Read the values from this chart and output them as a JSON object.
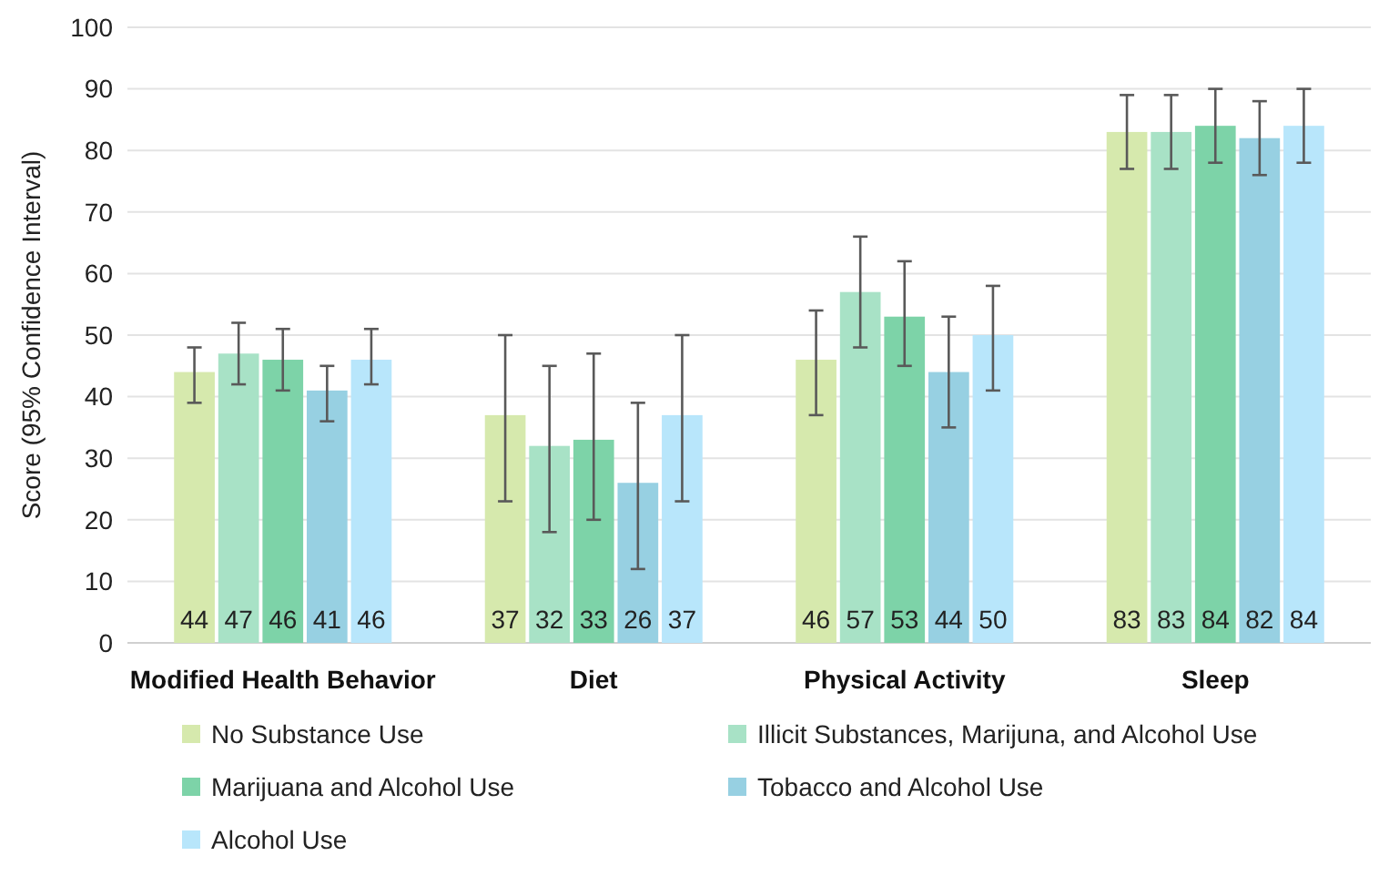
{
  "chart_data": {
    "type": "bar",
    "ylabel": "Score (95% Confidence Interval)",
    "categories": [
      "Modified Health Behavior",
      "Diet",
      "Physical Activity",
      "Sleep"
    ],
    "series": [
      {
        "name": "No Substance Use",
        "color": "#d6e9ad",
        "values": [
          44,
          37,
          46,
          83
        ],
        "errors": [
          [
            39,
            48
          ],
          [
            23,
            50
          ],
          [
            37,
            54
          ],
          [
            77,
            89
          ]
        ]
      },
      {
        "name": "Illicit Substances, Marijuna, and Alcohol Use",
        "color": "#a8e2c6",
        "values": [
          47,
          32,
          57,
          83
        ],
        "errors": [
          [
            42,
            52
          ],
          [
            18,
            45
          ],
          [
            48,
            66
          ],
          [
            77,
            89
          ]
        ]
      },
      {
        "name": "Marijuana and Alcohol Use",
        "color": "#7dd3a8",
        "values": [
          46,
          33,
          53,
          84
        ],
        "errors": [
          [
            41,
            51
          ],
          [
            20,
            47
          ],
          [
            45,
            62
          ],
          [
            78,
            90
          ]
        ]
      },
      {
        "name": "Tobacco and Alcohol Use",
        "color": "#97d0e2",
        "values": [
          41,
          26,
          44,
          82
        ],
        "errors": [
          [
            36,
            45
          ],
          [
            12,
            39
          ],
          [
            35,
            53
          ],
          [
            76,
            88
          ]
        ]
      },
      {
        "name": "Alcohol Use",
        "color": "#b8e6fb",
        "values": [
          46,
          37,
          50,
          84
        ],
        "errors": [
          [
            42,
            51
          ],
          [
            23,
            50
          ],
          [
            41,
            58
          ],
          [
            78,
            90
          ]
        ]
      }
    ],
    "ylim": [
      0,
      100
    ],
    "yticks": [
      0,
      10,
      20,
      30,
      40,
      50,
      60,
      70,
      80,
      90,
      100
    ],
    "grid": "y",
    "legend": "bottom",
    "data_labels": true
  }
}
